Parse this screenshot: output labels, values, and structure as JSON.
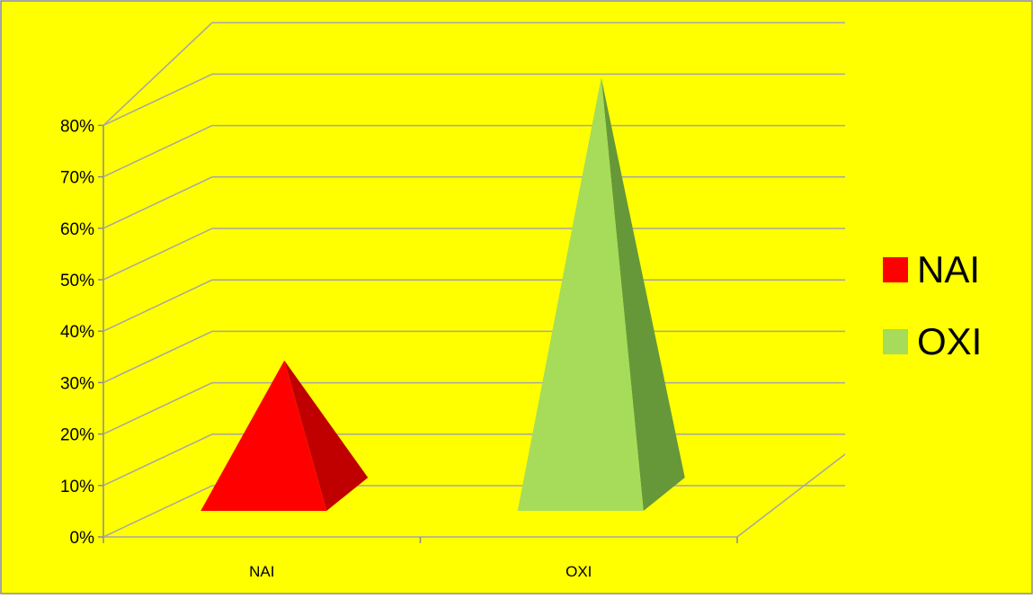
{
  "colors": {
    "background": "#ffff00",
    "border": "#8c8c8c",
    "grid": "#a6a6a6",
    "axis": "#8c8c8c",
    "text": "#000000"
  },
  "chart_data": {
    "type": "bar",
    "bar_shape": "3d-pyramid",
    "categories": [
      "NAI",
      "OXI"
    ],
    "series": [
      {
        "name": "NAI",
        "values": [
          26,
          null
        ],
        "color": "#ff0000",
        "shade": "#c00000"
      },
      {
        "name": "OXI",
        "values": [
          null,
          81
        ],
        "color": "#a6dc5a",
        "shade": "#66983a"
      }
    ],
    "title": "",
    "xlabel": "",
    "ylabel": "",
    "ylim": [
      0,
      80
    ],
    "yticks": [
      0,
      10,
      20,
      30,
      40,
      50,
      60,
      70,
      80
    ],
    "ytick_labels": [
      "0%",
      "10%",
      "20%",
      "30%",
      "40%",
      "50%",
      "60%",
      "70%",
      "80%"
    ],
    "grid": true,
    "legend": {
      "position": "right",
      "entries": [
        "NAI",
        "OXI"
      ]
    }
  }
}
